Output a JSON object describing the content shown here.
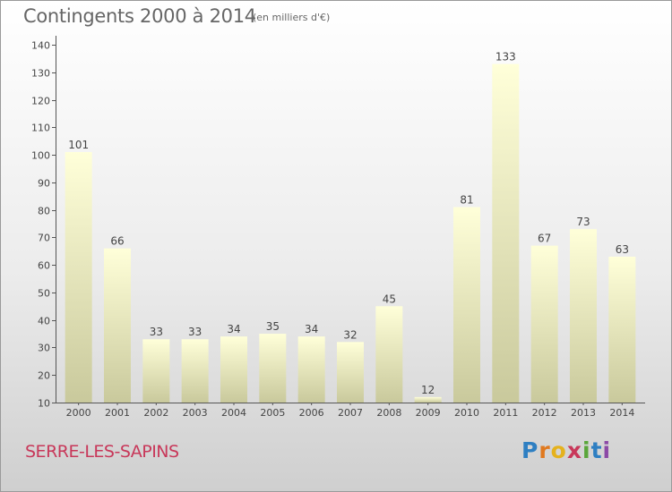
{
  "header": {
    "title": "Contingents 2000 à 2014",
    "subtitle": "(en milliers d'€)"
  },
  "footer": {
    "commune": "SERRE-LES-SAPINS",
    "logo": "Proxiti"
  },
  "colors": {
    "bar_top": "#ffffd9",
    "bar_bottom": "#c9c99c",
    "axis": "#555555",
    "text": "#444444"
  },
  "chart_data": {
    "type": "bar",
    "categories": [
      "2000",
      "2001",
      "2002",
      "2003",
      "2004",
      "2005",
      "2006",
      "2007",
      "2008",
      "2009",
      "2010",
      "2011",
      "2012",
      "2013",
      "2014"
    ],
    "values": [
      101,
      66,
      33,
      33,
      34,
      35,
      34,
      32,
      45,
      12,
      81,
      133,
      67,
      73,
      63
    ],
    "data_labels": [
      "101",
      "66",
      "33",
      "33",
      "34",
      "35",
      "34",
      "32",
      "45",
      "12",
      "81",
      "133",
      "67",
      "73",
      "63"
    ],
    "yticks": [
      10,
      20,
      30,
      40,
      50,
      60,
      70,
      80,
      90,
      100,
      110,
      120,
      130,
      140
    ],
    "ylim": [
      10,
      140
    ],
    "grid": false,
    "title": "Contingents 2000 à 2014",
    "xlabel": "",
    "ylabel": ""
  }
}
